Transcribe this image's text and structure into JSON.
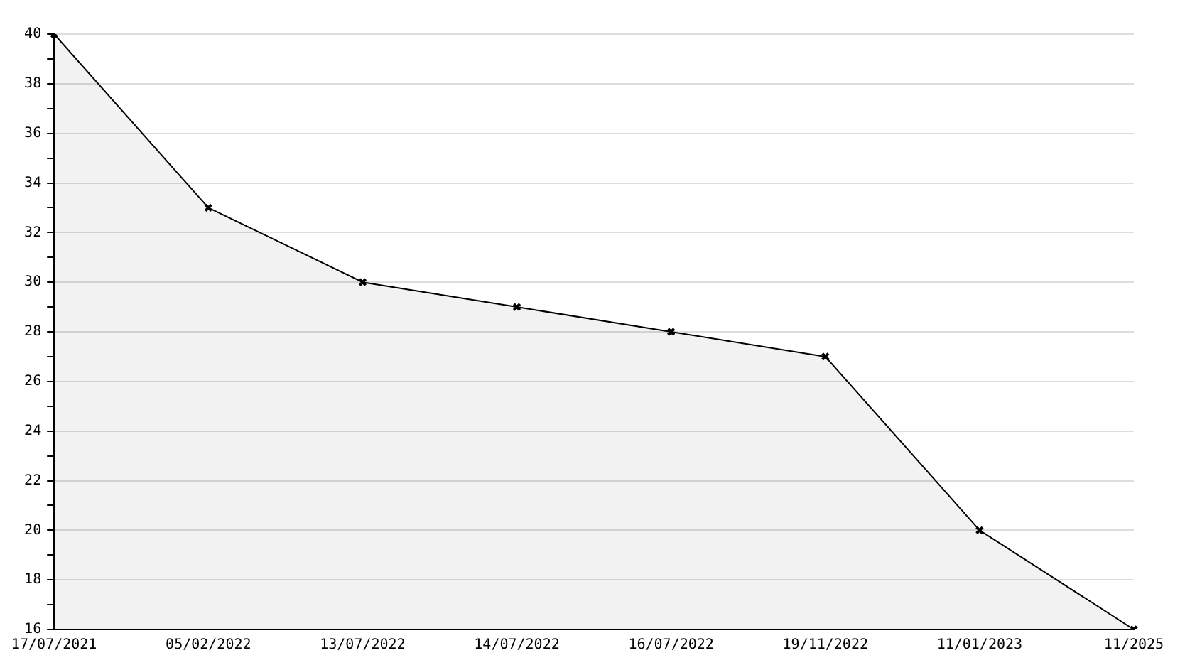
{
  "chart_data": {
    "type": "area",
    "categories": [
      "17/07/2021",
      "05/02/2022",
      "13/07/2022",
      "14/07/2022",
      "16/07/2022",
      "19/11/2022",
      "11/01/2023",
      "11/2025"
    ],
    "series": [
      {
        "color": "#000000",
        "values": [
          40,
          33,
          30,
          29,
          28,
          27,
          20,
          16
        ]
      }
    ],
    "ylim": [
      16,
      40
    ],
    "yticks": [
      16,
      {
        "value": 17,
        "label": null
      },
      18,
      {
        "value": 19,
        "label": null
      },
      20,
      {
        "value": 21,
        "label": null
      },
      22,
      {
        "value": 23,
        "label": null
      },
      24,
      {
        "value": 25,
        "label": null
      },
      26,
      {
        "value": 27,
        "label": null
      },
      28,
      {
        "value": 29,
        "label": null
      },
      30,
      {
        "value": 31,
        "label": null
      },
      32,
      {
        "value": 33,
        "label": null
      },
      34,
      {
        "value": 35,
        "label": null
      },
      36,
      {
        "value": 37,
        "label": null
      },
      38,
      {
        "value": 39,
        "label": null
      },
      40
    ],
    "grid": "y",
    "marker": "cross",
    "legend": false
  }
}
